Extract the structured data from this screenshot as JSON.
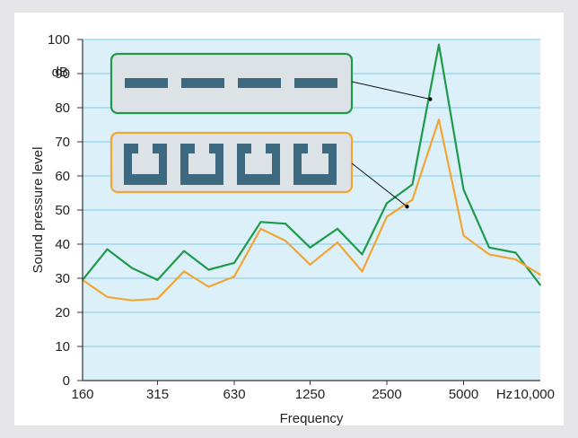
{
  "chart_data": {
    "type": "line",
    "xlabel": "Frequency",
    "ylabel": "Sound pressure level",
    "y_unit": "dB",
    "x_unit": "Hz",
    "ylim": [
      0,
      100
    ],
    "y_ticks": [
      0,
      10,
      20,
      30,
      40,
      50,
      60,
      70,
      80,
      90,
      100
    ],
    "x_ticks": [
      "160",
      "315",
      "630",
      "1250",
      "2500",
      "5000",
      "10,000"
    ],
    "grid": "horizontal",
    "series": [
      {
        "color": "#1e9a4a",
        "points": [
          [
            160,
            29.5
          ],
          [
            200,
            38.5
          ],
          [
            250,
            33
          ],
          [
            315,
            29.5
          ],
          [
            400,
            38
          ],
          [
            500,
            32.5
          ],
          [
            630,
            34.5
          ],
          [
            800,
            46.5
          ],
          [
            1000,
            46
          ],
          [
            1250,
            39
          ],
          [
            1600,
            44.5
          ],
          [
            2000,
            37
          ],
          [
            2500,
            52
          ],
          [
            3150,
            57.5
          ],
          [
            4000,
            98.5
          ],
          [
            5000,
            56
          ],
          [
            6300,
            39
          ],
          [
            8000,
            37.5
          ],
          [
            10000,
            28
          ]
        ]
      },
      {
        "color": "#f2a533",
        "points": [
          [
            160,
            29.5
          ],
          [
            200,
            24.5
          ],
          [
            250,
            23.5
          ],
          [
            315,
            24
          ],
          [
            400,
            32
          ],
          [
            500,
            27.5
          ],
          [
            630,
            30.5
          ],
          [
            800,
            44.5
          ],
          [
            1000,
            41
          ],
          [
            1250,
            34
          ],
          [
            1600,
            40.5
          ],
          [
            2000,
            32
          ],
          [
            2500,
            48
          ],
          [
            3150,
            53
          ],
          [
            4000,
            76.5
          ],
          [
            5000,
            42.5
          ],
          [
            6300,
            37
          ],
          [
            8000,
            35.5
          ],
          [
            10000,
            31
          ]
        ]
      }
    ],
    "insets": [
      {
        "name": "continuous-strip",
        "color": "#1e9a4a",
        "fill": "#dde2e6",
        "glyph_color": "#3d6a80",
        "pointer_target": [
          3700,
          82.5
        ]
      },
      {
        "name": "slotted-pattern",
        "color": "#f2a533",
        "fill": "#dde2e6",
        "glyph_color": "#3d6a80",
        "pointer_target": [
          3000,
          51
        ]
      }
    ],
    "plot_background": "#dcf0fa",
    "grid_color": "#7fc8e8"
  }
}
